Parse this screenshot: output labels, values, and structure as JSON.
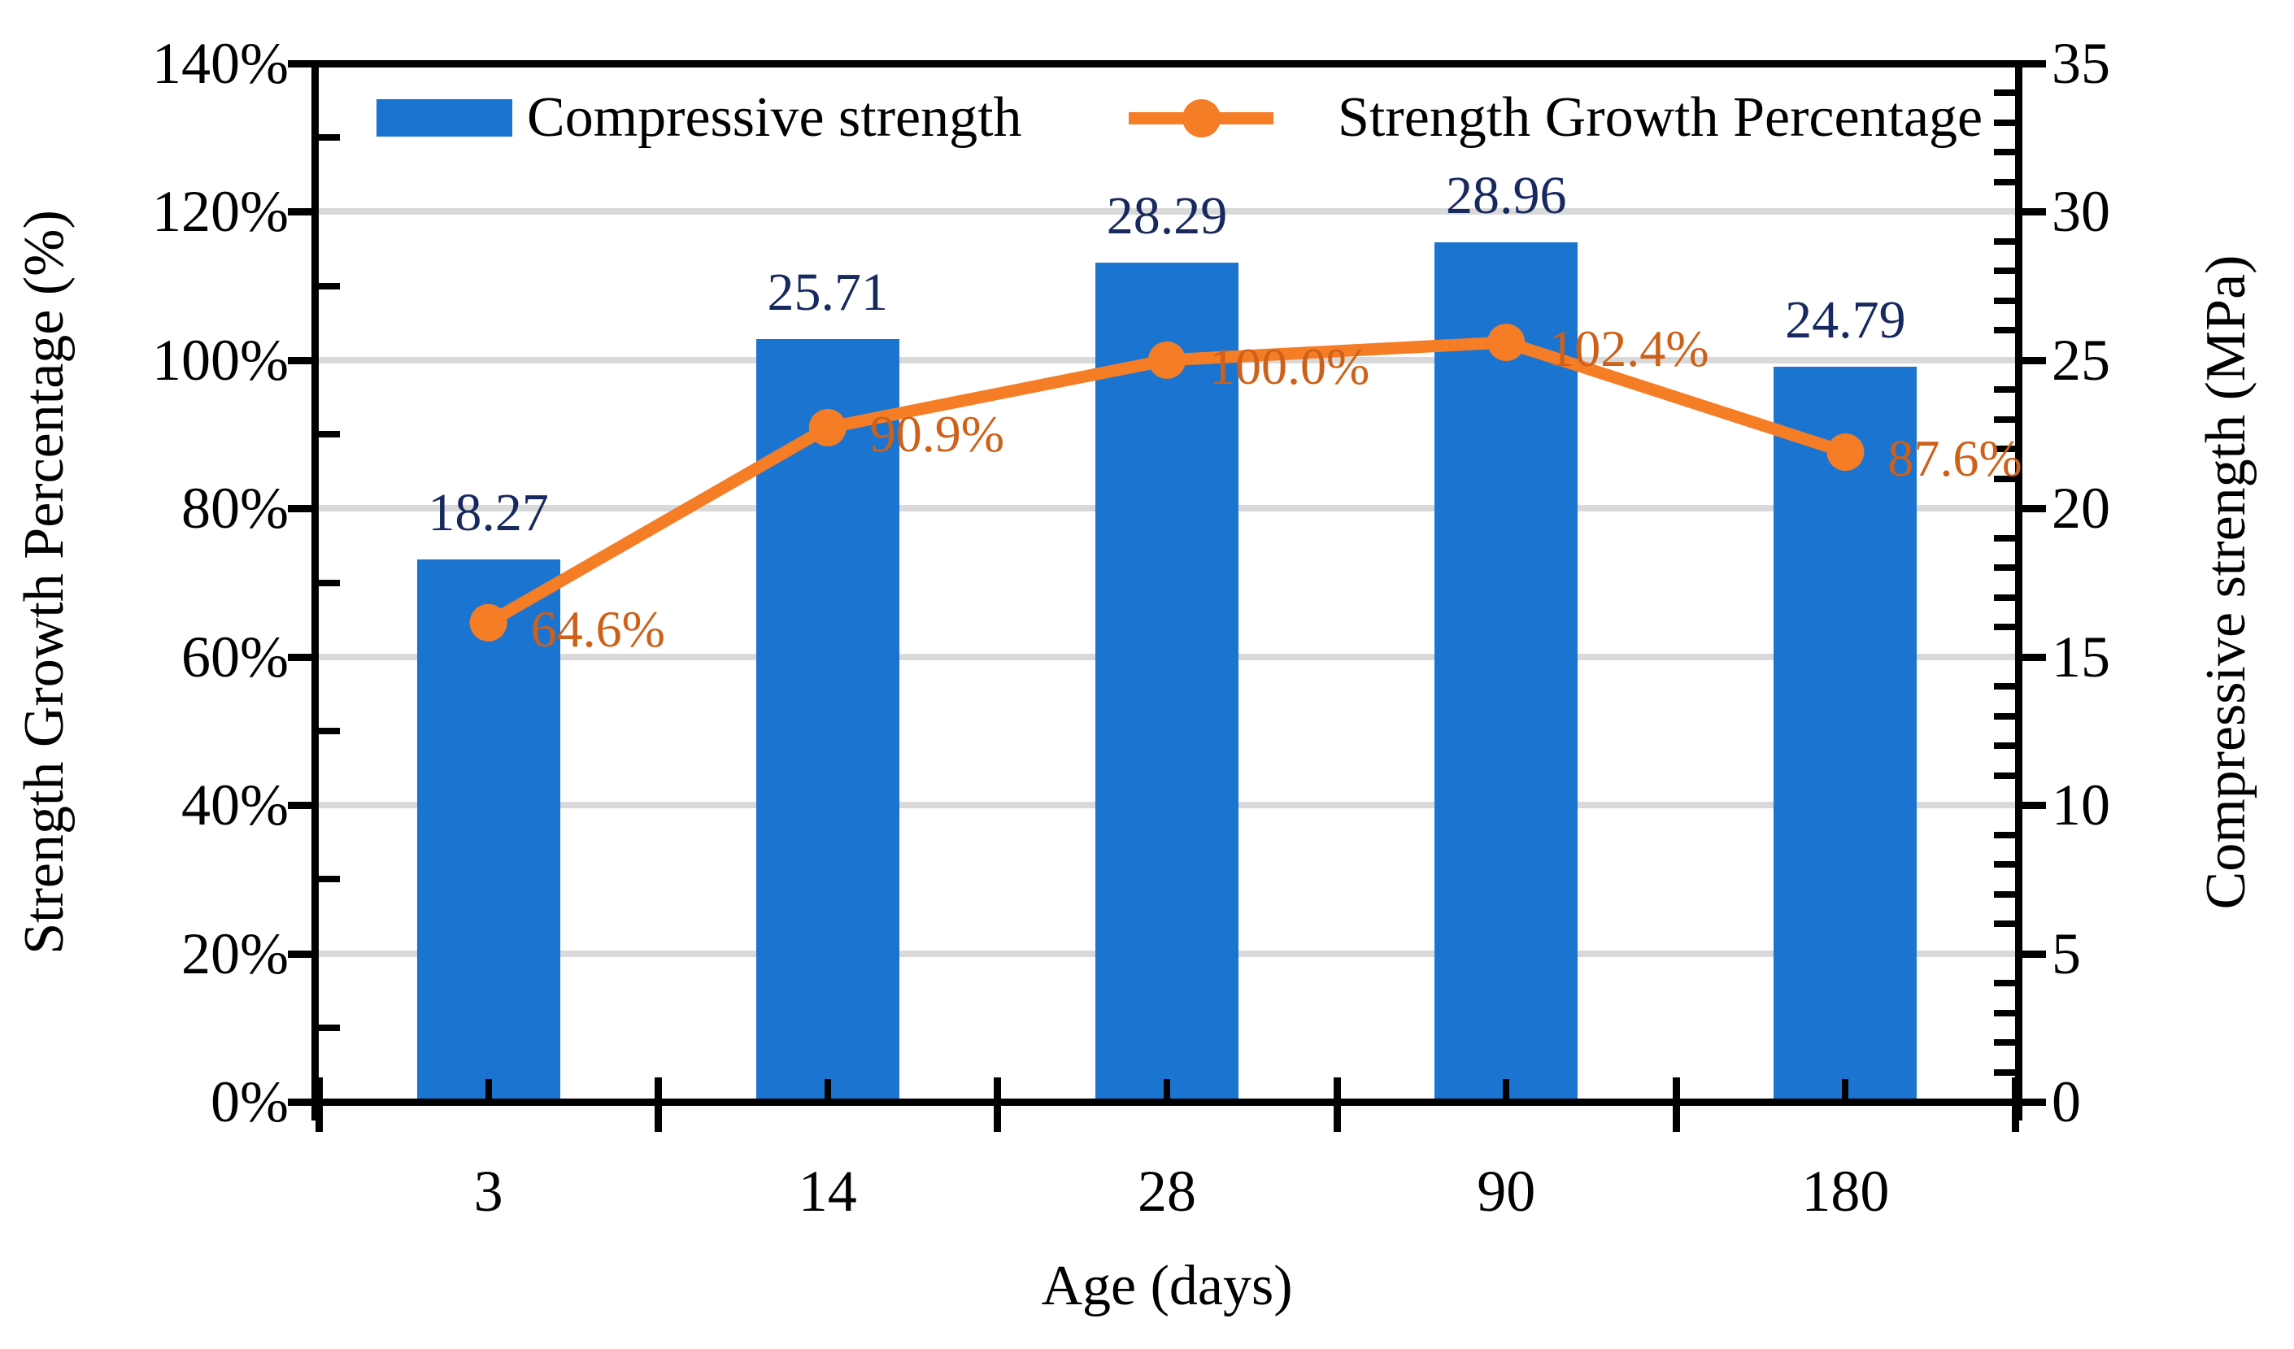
{
  "chart_data": {
    "type": "combo-bar-line",
    "categories": [
      "3",
      "14",
      "28",
      "90",
      "180"
    ],
    "x_axis_title": "Age (days)",
    "left_axis": {
      "title": "Strength Growth Percentage (%)",
      "min": 0,
      "max": 140,
      "major_step": 20,
      "minor_step": 10,
      "tick_labels": [
        "0%",
        "20%",
        "40%",
        "60%",
        "80%",
        "100%",
        "120%",
        "140%"
      ]
    },
    "right_axis": {
      "title": "Compressive strength (MPa)",
      "min": 0,
      "max": 35,
      "major_step": 5,
      "minor_step": 1,
      "tick_labels": [
        "0",
        "5",
        "10",
        "15",
        "20",
        "25",
        "30",
        "35"
      ]
    },
    "series": [
      {
        "name": "Compressive strength",
        "type": "bar",
        "axis": "right",
        "values": [
          18.27,
          25.71,
          28.29,
          28.96,
          24.79
        ],
        "data_labels": [
          "18.27",
          "25.71",
          "28.29",
          "28.96",
          "24.79"
        ],
        "color": "#1B75D0",
        "label_color": "#17295F"
      },
      {
        "name": "Strength Growth Percentage",
        "type": "line",
        "axis": "left",
        "values": [
          64.6,
          90.9,
          100.0,
          102.4,
          87.6
        ],
        "data_labels": [
          "64.6%",
          "90.9%",
          "100.0%",
          "102.4%",
          "87.6%"
        ],
        "color": "#F57D26",
        "label_color": "#CE6018"
      }
    ],
    "legend": {
      "position": "top",
      "items": [
        "Compressive strength",
        "Strength Growth Percentage"
      ]
    },
    "gridline_color": "#D9D9D9",
    "gridlines_at": [
      20,
      40,
      60,
      80,
      100,
      120
    ]
  }
}
